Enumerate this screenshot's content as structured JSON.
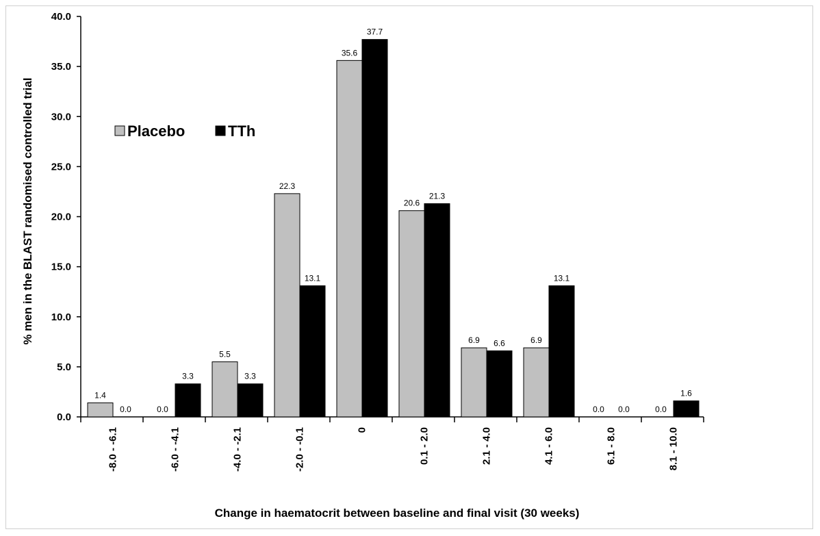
{
  "chart_data": {
    "type": "bar",
    "title": "",
    "xlabel": "Change in haematocrit between baseline and final visit (30 weeks)",
    "ylabel": "% men in the BLAST randomised controlled trial",
    "ylim": [
      0,
      40
    ],
    "yticks": [
      "0.0",
      "5.0",
      "10.0",
      "15.0",
      "20.0",
      "25.0",
      "30.0",
      "35.0",
      "40.0"
    ],
    "grid": false,
    "legend_position": "upper-left",
    "categories": [
      "-8.0 - -6.1",
      "-6.0 - -4.1",
      "-4.0 - -2.1",
      "-2.0 - -0.1",
      "0",
      "0.1 - 2.0",
      "2.1 - 4.0",
      "4.1 - 6.0",
      "6.1 - 8.0",
      "8.1 - 10.0"
    ],
    "series": [
      {
        "name": "Placebo",
        "color": "#c0c0c0",
        "values": [
          1.4,
          0.0,
          5.5,
          22.3,
          35.6,
          20.6,
          6.9,
          6.9,
          0.0,
          0.0
        ],
        "labels": [
          "1.4",
          "0.0",
          "5.5",
          "22.3",
          "35.6",
          "20.6",
          "6.9",
          "6.9",
          "0.0",
          "0.0"
        ]
      },
      {
        "name": "TTh",
        "color": "#000000",
        "values": [
          0.0,
          3.3,
          3.3,
          13.1,
          37.7,
          21.3,
          6.6,
          13.1,
          0.0,
          1.6
        ],
        "labels": [
          "0.0",
          "3.3",
          "3.3",
          "13.1",
          "37.7",
          "21.3",
          "6.6",
          "13.1",
          "0.0",
          "1.6"
        ]
      }
    ]
  }
}
